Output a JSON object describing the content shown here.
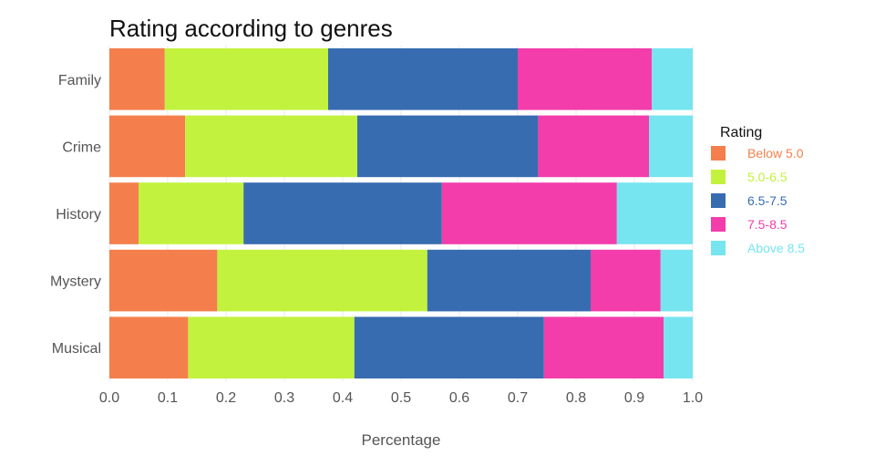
{
  "chart_data": {
    "type": "bar",
    "orientation": "horizontal",
    "stacked": true,
    "title": "Rating according to genres",
    "xlabel": "Percentage",
    "ylabel": "",
    "xlim": [
      0,
      1
    ],
    "x_ticks": [
      "0.0",
      "0.1",
      "0.2",
      "0.3",
      "0.4",
      "0.5",
      "0.6",
      "0.7",
      "0.8",
      "0.9",
      "1.0"
    ],
    "categories": [
      "Family",
      "Crime",
      "History",
      "Mystery",
      "Musical"
    ],
    "series": [
      {
        "name": "Below 5.0",
        "color": "#f47f4c",
        "values": [
          0.095,
          0.13,
          0.05,
          0.185,
          0.135
        ]
      },
      {
        "name": "5.0-6.5",
        "color": "#c2f23e",
        "values": [
          0.28,
          0.295,
          0.18,
          0.36,
          0.285
        ]
      },
      {
        "name": "6.5-7.5",
        "color": "#386cb0",
        "values": [
          0.325,
          0.31,
          0.34,
          0.28,
          0.325
        ]
      },
      {
        "name": "7.5-8.5",
        "color": "#f23dab",
        "values": [
          0.23,
          0.19,
          0.3,
          0.12,
          0.205
        ]
      },
      {
        "name": "Above 8.5",
        "color": "#76e5f0",
        "values": [
          0.07,
          0.075,
          0.13,
          0.055,
          0.05
        ]
      }
    ],
    "legend": {
      "title": "Rating",
      "position": "right"
    },
    "grid": true
  }
}
